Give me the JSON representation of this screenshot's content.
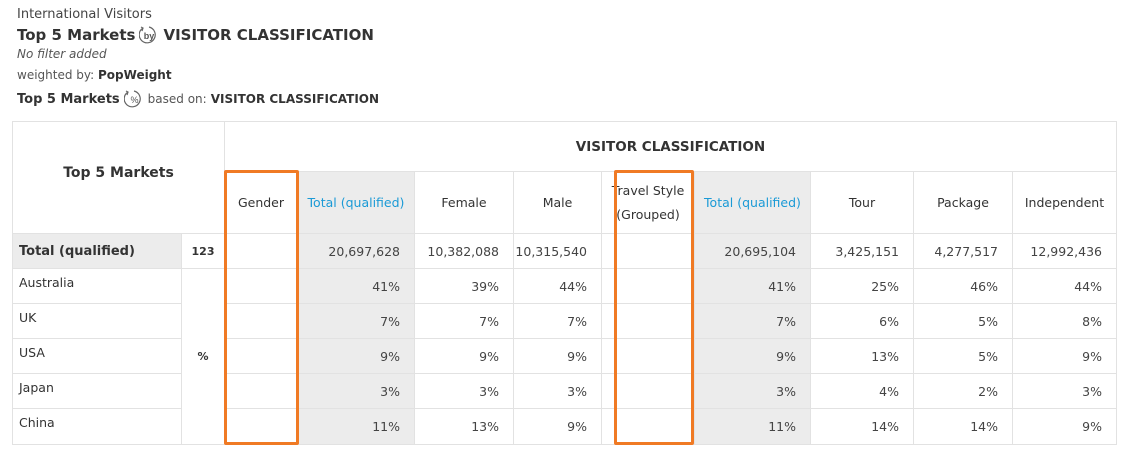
{
  "header": {
    "subtitle": "International Visitors",
    "title_left": "Top 5 Markets",
    "title_by": "by",
    "title_right": "VISITOR CLASSIFICATION",
    "filter_note": "No filter added",
    "weighted_label": "weighted by:",
    "weighted_value": "PopWeight",
    "basis_left": "Top 5 Markets",
    "basis_symbol": "%",
    "basis_label": "based on:",
    "basis_value": "VISITOR CLASSIFICATION"
  },
  "table": {
    "row_header_title": "Top 5 Markets",
    "column_group_title": "VISITOR CLASSIFICATION",
    "columns": {
      "gender": "Gender",
      "total_a": "Total (qualified)",
      "female": "Female",
      "male": "Male",
      "travel_style": "Travel Style (Grouped)",
      "total_b": "Total (qualified)",
      "tour": "Tour",
      "package": "Package",
      "independent": "Independent"
    },
    "total_row": {
      "label": "Total (qualified)",
      "count": "123",
      "total_a": "20,697,628",
      "female": "10,382,088",
      "male": "10,315,540",
      "total_b": "20,695,104",
      "tour": "3,425,151",
      "package": "4,277,517",
      "independent": "12,992,436"
    },
    "percent_marker": "%",
    "rows": [
      {
        "label": "Australia",
        "total_a": "41%",
        "female": "39%",
        "male": "44%",
        "total_b": "41%",
        "tour": "25%",
        "package": "46%",
        "independent": "44%"
      },
      {
        "label": "UK",
        "total_a": "7%",
        "female": "7%",
        "male": "7%",
        "total_b": "7%",
        "tour": "6%",
        "package": "5%",
        "independent": "8%"
      },
      {
        "label": "USA",
        "total_a": "9%",
        "female": "9%",
        "male": "9%",
        "total_b": "9%",
        "tour": "13%",
        "package": "5%",
        "independent": "9%"
      },
      {
        "label": "Japan",
        "total_a": "3%",
        "female": "3%",
        "male": "3%",
        "total_b": "3%",
        "tour": "4%",
        "package": "2%",
        "independent": "3%"
      },
      {
        "label": "China",
        "total_a": "11%",
        "female": "13%",
        "male": "9%",
        "total_b": "11%",
        "tour": "14%",
        "package": "14%",
        "independent": "9%"
      }
    ]
  },
  "colors": {
    "highlight": "#f07a24",
    "link_blue": "#1b9ad6",
    "shade": "#ececec"
  }
}
